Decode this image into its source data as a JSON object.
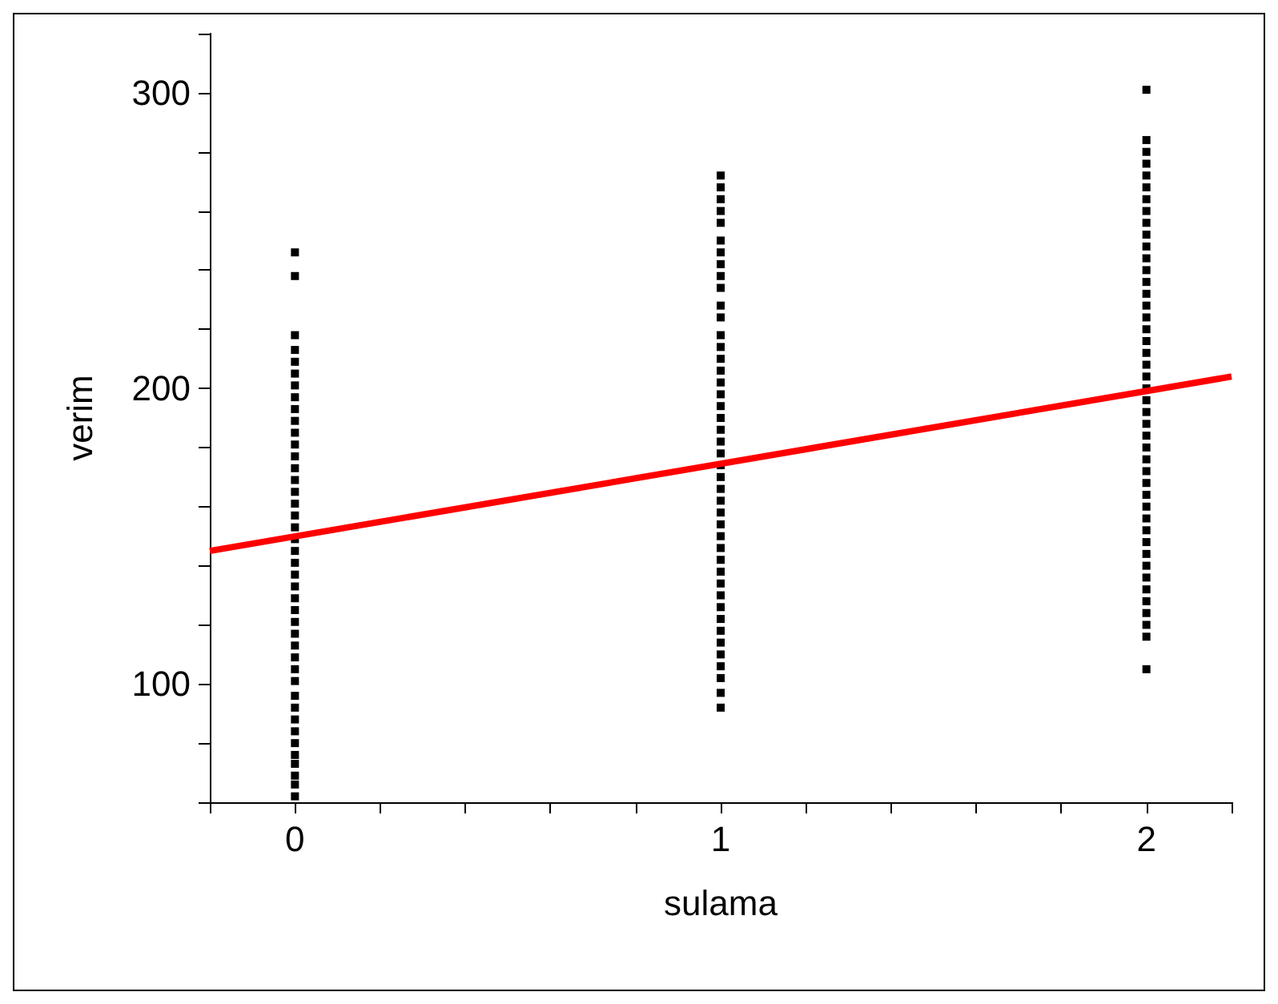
{
  "chart_data": {
    "type": "scatter",
    "xlabel": "sulama",
    "ylabel": "verim",
    "xlim": [
      -0.2,
      2.2
    ],
    "ylim": [
      60,
      320
    ],
    "xticks": [
      {
        "value": -0.2,
        "label": null
      },
      0,
      {
        "value": 0.2,
        "label": null
      },
      {
        "value": 0.4,
        "label": null
      },
      {
        "value": 0.6,
        "label": null
      },
      {
        "value": 0.8,
        "label": null
      },
      1,
      {
        "value": 1.2,
        "label": null
      },
      {
        "value": 1.4,
        "label": null
      },
      {
        "value": 1.6,
        "label": null
      },
      {
        "value": 1.8,
        "label": null
      },
      2,
      {
        "value": 2.2,
        "label": null
      }
    ],
    "yticks": [
      {
        "value": 60,
        "label": null
      },
      {
        "value": 80,
        "label": null
      },
      100,
      {
        "value": 120,
        "label": null
      },
      {
        "value": 140,
        "label": null
      },
      {
        "value": 160,
        "label": null
      },
      {
        "value": 180,
        "label": null
      },
      200,
      {
        "value": 220,
        "label": null
      },
      {
        "value": 240,
        "label": null
      },
      {
        "value": 260,
        "label": null
      },
      {
        "value": 280,
        "label": null
      },
      300,
      {
        "value": 320,
        "label": null
      }
    ],
    "grid": false,
    "marker": "square",
    "series": [
      {
        "color": "#000000",
        "x": [
          0,
          0,
          0,
          0,
          0,
          0,
          0,
          0,
          0,
          0,
          0,
          0,
          0,
          0,
          0,
          0,
          0,
          0,
          0,
          0,
          0,
          0,
          0,
          0,
          0,
          0,
          0,
          0,
          0,
          0,
          0,
          0,
          0,
          0,
          0,
          0,
          0,
          0,
          0,
          0,
          0,
          0,
          1,
          1,
          1,
          1,
          1,
          1,
          1,
          1,
          1,
          1,
          1,
          1,
          1,
          1,
          1,
          1,
          1,
          1,
          1,
          1,
          1,
          1,
          1,
          1,
          1,
          1,
          1,
          1,
          1,
          1,
          1,
          1,
          1,
          1,
          1,
          1,
          1,
          1,
          1,
          1,
          1,
          1,
          1,
          1,
          2,
          2,
          2,
          2,
          2,
          2,
          2,
          2,
          2,
          2,
          2,
          2,
          2,
          2,
          2,
          2,
          2,
          2,
          2,
          2,
          2,
          2,
          2,
          2,
          2,
          2,
          2,
          2,
          2,
          2,
          2,
          2,
          2,
          2,
          2,
          2,
          2,
          2,
          2,
          2,
          2,
          2,
          2,
          2,
          2
        ],
        "values": [
          246,
          238,
          218,
          213,
          209,
          205,
          201,
          197,
          193,
          189,
          185,
          181,
          177,
          173,
          169,
          165,
          161,
          157,
          153,
          149,
          145,
          141,
          137,
          133,
          129,
          125,
          121,
          117,
          113,
          109,
          105,
          101,
          96,
          92,
          88,
          84,
          80,
          76,
          73,
          69,
          66,
          62,
          272,
          268,
          264,
          260,
          256,
          250,
          246,
          242,
          238,
          234,
          228,
          224,
          218,
          214,
          210,
          206,
          202,
          198,
          194,
          190,
          186,
          182,
          178,
          174,
          170,
          166,
          162,
          158,
          154,
          150,
          146,
          142,
          138,
          134,
          130,
          126,
          122,
          118,
          114,
          110,
          106,
          102,
          97,
          92,
          301,
          284,
          280,
          276,
          272,
          268,
          264,
          260,
          256,
          252,
          248,
          244,
          240,
          236,
          232,
          228,
          224,
          220,
          216,
          212,
          208,
          204,
          200,
          196,
          192,
          188,
          184,
          180,
          176,
          172,
          168,
          164,
          160,
          156,
          152,
          148,
          144,
          140,
          136,
          132,
          128,
          124,
          120,
          116,
          105
        ]
      },
      {
        "type": "line",
        "color": "#ff0000",
        "marker": "none",
        "line_style": "solid",
        "x": [
          -0.2,
          2.2
        ],
        "values": [
          145,
          204
        ]
      }
    ]
  }
}
